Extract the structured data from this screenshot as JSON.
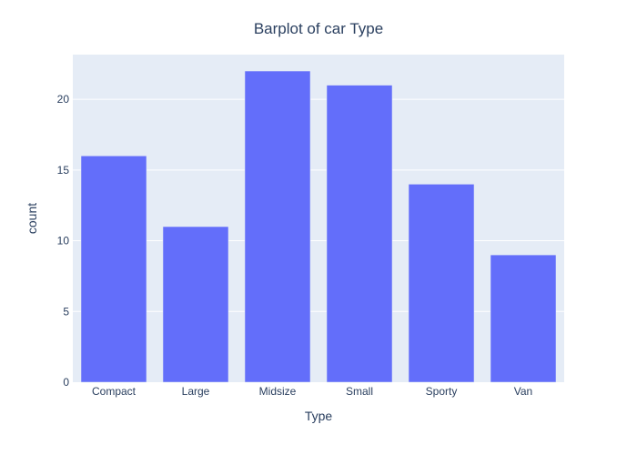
{
  "chart_data": {
    "type": "bar",
    "title": "Barplot of car Type",
    "xlabel": "Type",
    "ylabel": "count",
    "categories": [
      "Compact",
      "Large",
      "Midsize",
      "Small",
      "Sporty",
      "Van"
    ],
    "values": [
      16,
      11,
      22,
      21,
      14,
      9
    ],
    "ylim": [
      0,
      23.16
    ],
    "yticks": [
      0,
      5,
      10,
      15,
      20
    ],
    "grid": true,
    "legend": "none"
  },
  "colors": {
    "bar": "#636efa",
    "plot_background": "#e5ecf6",
    "grid": "#ffffff",
    "text": "#2a3f5f"
  }
}
